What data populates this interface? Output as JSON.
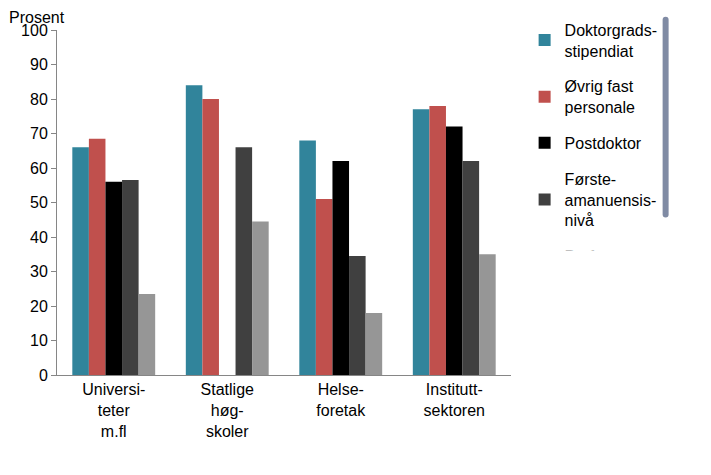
{
  "chart_data": {
    "type": "bar",
    "y_label": "Prosent",
    "categories": [
      "Universi-\nteter\nm.fl",
      "Statlige\nhøg-\nskoler",
      "Helse-\nforetak",
      "Institutt-\nsektoren"
    ],
    "series": [
      {
        "name": "Doktorgrads-\nstipendiat",
        "color": "#31849B",
        "values": [
          66,
          84,
          68,
          77
        ]
      },
      {
        "name": "Øvrig fast\npersonale",
        "color": "#C0504D",
        "values": [
          68.5,
          80,
          51,
          78
        ]
      },
      {
        "name": "Postdoktor",
        "color": "#000000",
        "values": [
          56,
          null,
          62,
          72
        ]
      },
      {
        "name": "Første-\namanuensis-\nnivå",
        "color": "#404040",
        "values": [
          56.5,
          66,
          34.5,
          62
        ]
      },
      {
        "name": "Professor-\nnivå",
        "color": "#969696",
        "values": [
          23.5,
          44.5,
          18,
          35
        ]
      }
    ],
    "ylim": [
      0,
      100
    ],
    "yticks": [
      0,
      10,
      20,
      30,
      40,
      50,
      60,
      70,
      80,
      90,
      100
    ],
    "grid": false,
    "legend": "right"
  }
}
